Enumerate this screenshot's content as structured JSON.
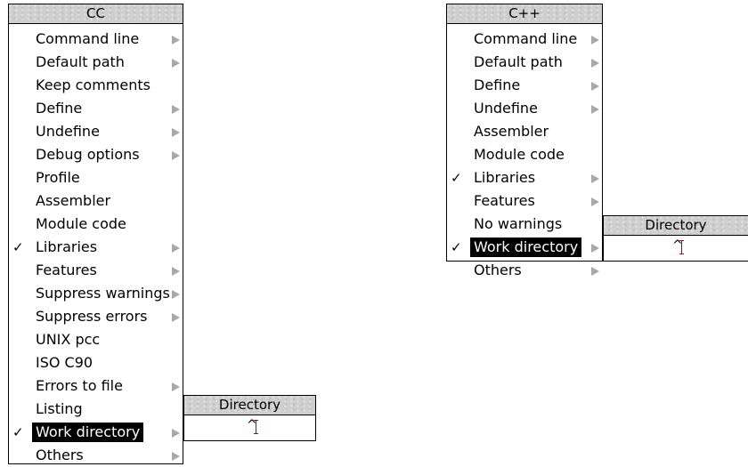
{
  "cc_menu": {
    "title": "CC",
    "items": [
      {
        "label": "Command line",
        "tick": "",
        "submenu": true
      },
      {
        "label": "Default path",
        "tick": "",
        "submenu": true
      },
      {
        "label": "Keep comments",
        "tick": "",
        "submenu": false
      },
      {
        "label": "Define",
        "tick": "",
        "submenu": true
      },
      {
        "label": "Undefine",
        "tick": "",
        "submenu": true
      },
      {
        "label": "Debug options",
        "tick": "",
        "submenu": true
      },
      {
        "label": "Profile",
        "tick": "",
        "submenu": false
      },
      {
        "label": "Assembler",
        "tick": "",
        "submenu": false
      },
      {
        "label": "Module code",
        "tick": "",
        "submenu": false
      },
      {
        "label": "Libraries",
        "tick": "✓",
        "submenu": true
      },
      {
        "label": "Features",
        "tick": "",
        "submenu": true
      },
      {
        "label": "Suppress warnings",
        "tick": "",
        "submenu": true
      },
      {
        "label": "Suppress errors",
        "tick": "",
        "submenu": true
      },
      {
        "label": "UNIX pcc",
        "tick": "",
        "submenu": false
      },
      {
        "label": "ISO C90",
        "tick": "",
        "submenu": false
      },
      {
        "label": "Errors to file",
        "tick": "",
        "submenu": true
      },
      {
        "label": "Listing",
        "tick": "",
        "submenu": false
      },
      {
        "label": "Work directory",
        "tick": "✓",
        "submenu": true,
        "selected": true
      },
      {
        "label": "Others",
        "tick": "",
        "submenu": true
      }
    ]
  },
  "cpp_menu": {
    "title": "C++",
    "items": [
      {
        "label": "Command line",
        "tick": "",
        "submenu": true
      },
      {
        "label": "Default path",
        "tick": "",
        "submenu": true
      },
      {
        "label": "Define",
        "tick": "",
        "submenu": true
      },
      {
        "label": "Undefine",
        "tick": "",
        "submenu": true
      },
      {
        "label": "Assembler",
        "tick": "",
        "submenu": false
      },
      {
        "label": "Module code",
        "tick": "",
        "submenu": false
      },
      {
        "label": "Libraries",
        "tick": "✓",
        "submenu": true
      },
      {
        "label": "Features",
        "tick": "",
        "submenu": true
      },
      {
        "label": "No warnings",
        "tick": "",
        "submenu": false
      },
      {
        "label": "Work directory",
        "tick": "✓",
        "submenu": true,
        "selected": true
      },
      {
        "label": "Others",
        "tick": "",
        "submenu": true
      }
    ]
  },
  "cc_directory": {
    "title": "Directory",
    "value": "^"
  },
  "cpp_directory": {
    "title": "Directory",
    "value": "^"
  }
}
